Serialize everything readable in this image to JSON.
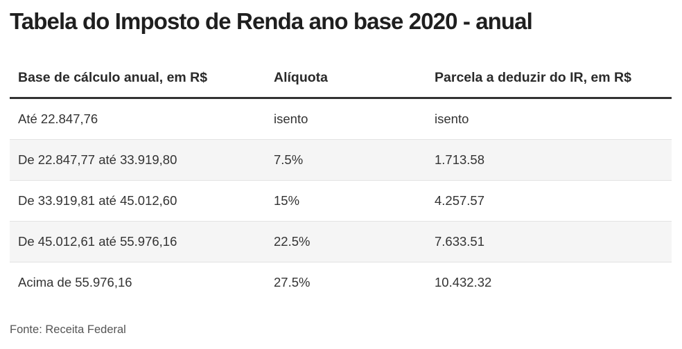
{
  "title": "Tabela do Imposto de Renda ano base 2020 - anual",
  "source": "Fonte: Receita Federal",
  "chart_data": {
    "type": "table",
    "title": "Tabela do Imposto de Renda ano base 2020 - anual",
    "columns": [
      "Base de cálculo anual, em R$",
      "Alíquota",
      "Parcela a deduzir do IR, em R$"
    ],
    "rows": [
      [
        "Até 22.847,76",
        "isento",
        "isento"
      ],
      [
        "De 22.847,77 até 33.919,80",
        "7.5%",
        "1.713.58"
      ],
      [
        "De 33.919,81 até 45.012,60",
        "15%",
        "4.257.57"
      ],
      [
        "De 45.012,61 até 55.976,16",
        "22.5%",
        "7.633.51"
      ],
      [
        "Acima de 55.976,16",
        "27.5%",
        "10.432.32"
      ]
    ],
    "source": "Fonte: Receita Federal"
  }
}
